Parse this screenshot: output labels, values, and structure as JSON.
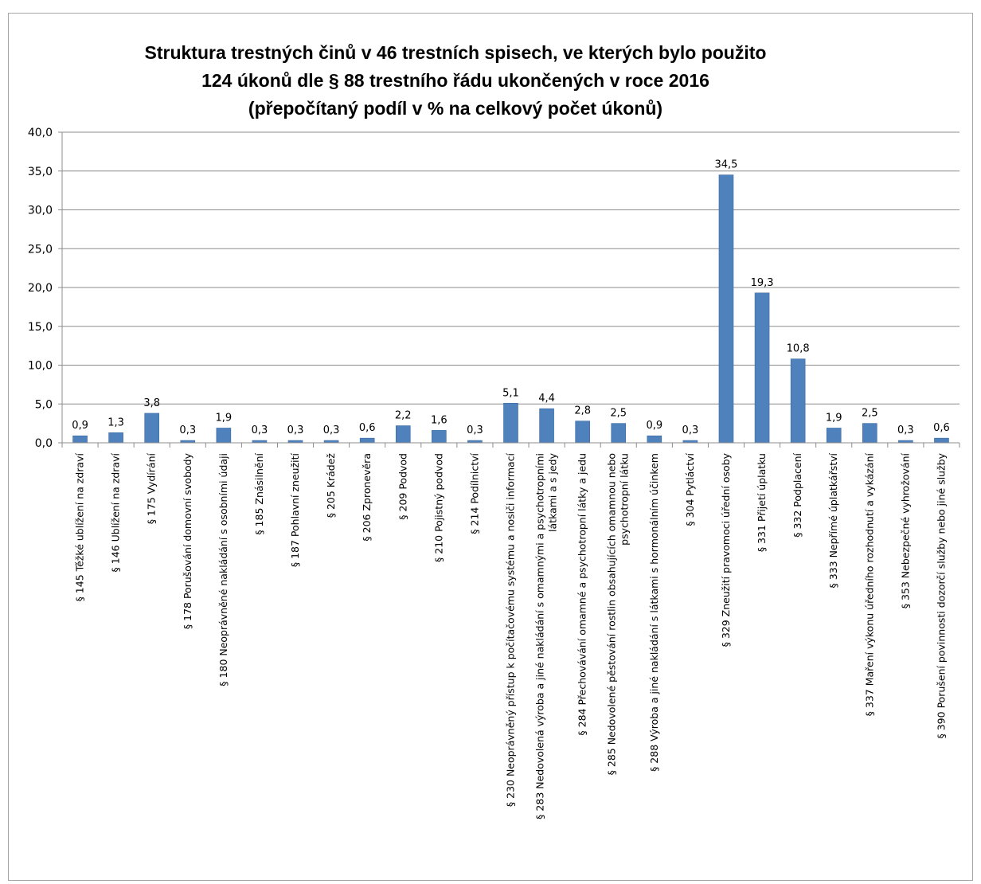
{
  "chart_data": {
    "type": "bar",
    "title_lines": [
      "Struktura trestných činů v 46 trestních spisech, ve kterých bylo použito",
      "124 úkonů dle § 88 trestního řádu ukončených v roce 2016",
      "(přepočítaný podíl v % na celkový počet úkonů)"
    ],
    "xlabel": "",
    "ylabel": "",
    "ylim": [
      0,
      40
    ],
    "yticks": [
      "0,0",
      "5,0",
      "10,0",
      "15,0",
      "20,0",
      "25,0",
      "30,0",
      "35,0",
      "40,0"
    ],
    "grid": true,
    "legend": "none",
    "bar_color": "#4f81bd",
    "categories": [
      [
        "§ 145 Těžké ublížení na zdraví"
      ],
      [
        "§ 146 Ublížení na zdraví"
      ],
      [
        "§ 175 Vydírání"
      ],
      [
        "§ 178 Porušování domovní svobody"
      ],
      [
        "§ 180 Neoprávněné nakládání s osobními údaji"
      ],
      [
        "§ 185 Znásilnění"
      ],
      [
        "§ 187 Pohlavní zneužití"
      ],
      [
        "§ 205 Krádež"
      ],
      [
        "§ 206 Zpronevěra"
      ],
      [
        "§ 209 Podvod"
      ],
      [
        "§ 210 Pojistný podvod"
      ],
      [
        "§ 214 Podílnictví"
      ],
      [
        "§ 230 Neoprávněný přístup k počítačovému systému a nosiči informací"
      ],
      [
        "§ 283 Nedovolená výroba a jiné nakládání s omamnými a psychotropními",
        "látkami a s jedy"
      ],
      [
        "§ 284 Přechovávání omamné a psychotropní látky a jedu"
      ],
      [
        "§ 285 Nedovolené pěstování rostlin obsahujících omamnou nebo",
        "psychotropní látku"
      ],
      [
        "§ 288 Výroba a jiné nakládání s látkami s hormonálním účinkem"
      ],
      [
        "§ 304 Pytláctví"
      ],
      [
        "§ 329 Zneužití pravomoci úřední osoby"
      ],
      [
        "§ 331 Přijetí úplatku"
      ],
      [
        "§ 332 Podplacení"
      ],
      [
        "§ 333 Nepřímé úplatkářství"
      ],
      [
        "§ 337 Maření výkonu úředního rozhodnutí a vykázání"
      ],
      [
        "§ 353 Nebezpečné vyhrožování"
      ],
      [
        "§ 390 Porušení povinnosti dozorčí služby nebo jiné služby"
      ]
    ],
    "values": [
      0.9,
      1.3,
      3.8,
      0.3,
      1.9,
      0.3,
      0.3,
      0.3,
      0.6,
      2.2,
      1.6,
      0.3,
      5.1,
      4.4,
      2.8,
      2.5,
      0.9,
      0.3,
      34.5,
      19.3,
      10.8,
      1.9,
      2.5,
      0.3,
      0.6
    ],
    "value_labels": [
      "0,9",
      "1,3",
      "3,8",
      "0,3",
      "1,9",
      "0,3",
      "0,3",
      "0,3",
      "0,6",
      "2,2",
      "1,6",
      "0,3",
      "5,1",
      "4,4",
      "2,8",
      "2,5",
      "0,9",
      "0,3",
      "34,5",
      "19,3",
      "10,8",
      "1,9",
      "2,5",
      "0,3",
      "0,6"
    ]
  }
}
